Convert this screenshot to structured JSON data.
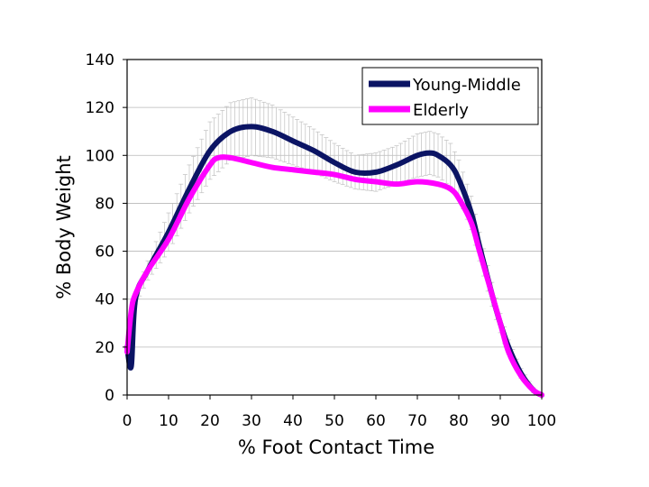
{
  "chart_data": {
    "type": "line",
    "xlabel": "% Foot Contact Time",
    "ylabel": "% Body Weight",
    "xlim": [
      0,
      100
    ],
    "ylim": [
      0,
      140
    ],
    "x_ticks": [
      0,
      10,
      20,
      30,
      40,
      50,
      60,
      70,
      80,
      90,
      100
    ],
    "y_ticks": [
      0,
      20,
      40,
      60,
      80,
      100,
      120,
      140
    ],
    "grid": "horizontal",
    "legend_position": "top-right",
    "error_bars": true,
    "series": [
      {
        "name": "Young-Middle",
        "color": "#0b1464",
        "error_color": "#c0c0c0",
        "x": [
          0,
          1,
          2,
          5,
          10,
          15,
          20,
          25,
          30,
          35,
          40,
          45,
          50,
          55,
          60,
          65,
          70,
          73,
          75,
          78,
          80,
          83,
          85,
          88,
          90,
          92,
          95,
          98,
          100
        ],
        "values": [
          20,
          12,
          40,
          52,
          68,
          86,
          102,
          110,
          112,
          110,
          106,
          102,
          97,
          93,
          93,
          96,
          100,
          101,
          100,
          96,
          90,
          76,
          62,
          42,
          30,
          20,
          9,
          2,
          0
        ],
        "error": [
          0,
          0,
          2,
          4,
          8,
          10,
          12,
          12,
          12,
          11,
          10,
          9,
          8,
          7,
          8,
          8,
          9,
          9,
          9,
          9,
          8,
          7,
          6,
          5,
          4,
          3,
          2,
          1,
          0
        ]
      },
      {
        "name": "Elderly",
        "color": "#ff00ff",
        "x": [
          0,
          1,
          2,
          5,
          10,
          15,
          20,
          22,
          25,
          30,
          35,
          40,
          45,
          50,
          55,
          60,
          65,
          70,
          75,
          78,
          80,
          83,
          85,
          88,
          90,
          92,
          95,
          98,
          100
        ],
        "values": [
          18,
          35,
          42,
          52,
          65,
          82,
          96,
          99,
          99,
          97,
          95,
          94,
          93,
          92,
          90,
          89,
          88,
          89,
          88,
          86,
          82,
          72,
          60,
          42,
          30,
          18,
          8,
          2,
          0
        ]
      }
    ]
  }
}
